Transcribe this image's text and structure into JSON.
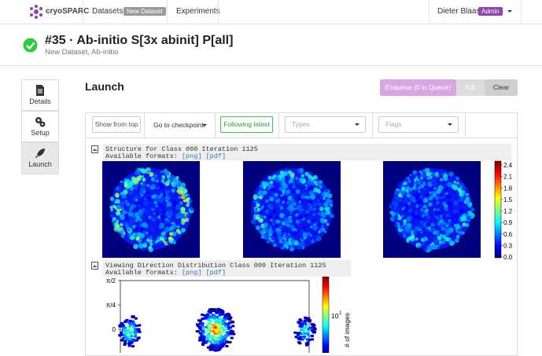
{
  "navbar": {
    "brand": "cryoSPARC",
    "datasets": "Datasets",
    "dataset_badge": "New Dataset",
    "experiments": "Experiments",
    "user": "Dieter Blaas",
    "user_badge": "Admin"
  },
  "header": {
    "title": "#35 · Ab-initio S[3x abinit] P[all]",
    "subtitle": "New Dataset, Ab-initio"
  },
  "sidebar": {
    "tabs": [
      "Details",
      "Setup",
      "Launch"
    ]
  },
  "launch": {
    "heading": "Launch",
    "enqueue": "Enqueue (0 in Queue)",
    "kill": "Kill",
    "clear": "Clear"
  },
  "toolbar": {
    "show_from_top": "Show from top",
    "checkpoint": "Go to checkpoint:",
    "following": "Following latest",
    "types": "Types",
    "flags": "Flags"
  },
  "log": [
    {
      "title": "Structure for Class 000 Iteration 1125",
      "formats": "Available formats:",
      "links": [
        "[png]",
        "[pdf]"
      ],
      "colorbar_ticks": [
        "2.4",
        "2.1",
        "1.8",
        "1.5",
        "1.2",
        "0.9",
        "0.6",
        "0.3",
        "0.0"
      ]
    },
    {
      "title": "Viewing Direction Distribution Class 000 Iteration 1125",
      "formats": "Available formats:",
      "links": [
        "[png]",
        "[pdf]"
      ],
      "y_ticks": [
        "π/2",
        "π/4",
        "0"
      ],
      "colorbar_base": "10",
      "colorbar_exponent": "1",
      "colorbar_label": "# of images"
    }
  ]
}
